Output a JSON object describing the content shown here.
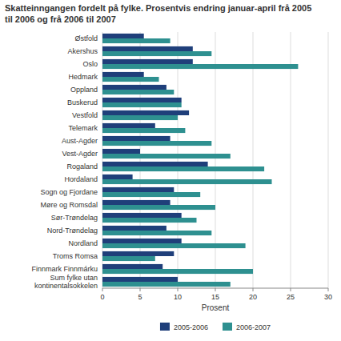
{
  "chart_data": {
    "type": "bar",
    "orientation": "horizontal",
    "title": "Skatteinngangen fordelt på fylke. Prosentvis endring januar-april frå 2005\ntil 2006 og frå 2006 til 2007",
    "categories": [
      "Østfold",
      "Akershus",
      "Oslo",
      "Hedmark",
      "Oppland",
      "Buskerud",
      "Vestfold",
      "Telemark",
      "Aust-Agder",
      "Vest-Agder",
      "Rogaland",
      "Hordaland",
      "Sogn og Fjordane",
      "Møre og Romsdal",
      "Sør-Trøndelag",
      "Nord-Trøndelag",
      "Nordland",
      "Troms Romsa",
      "Finnmark Finnmárku",
      "Sum fylke utan\nkontinentalsokkelen"
    ],
    "series": [
      {
        "name": "2005-2006",
        "color": "#1f3f7a",
        "values": [
          5.5,
          12.0,
          12.0,
          5.5,
          8.5,
          10.5,
          11.5,
          7.0,
          9.0,
          5.0,
          14.0,
          4.0,
          9.5,
          9.0,
          10.5,
          8.5,
          10.5,
          9.5,
          8.0,
          10.0
        ]
      },
      {
        "name": "2006-2007",
        "color": "#2e9090",
        "values": [
          9.0,
          14.5,
          26.0,
          7.5,
          9.5,
          10.5,
          10.0,
          11.0,
          14.5,
          17.0,
          21.5,
          22.5,
          13.0,
          15.0,
          12.5,
          14.5,
          19.0,
          7.0,
          20.0,
          17.0
        ]
      }
    ],
    "xlabel": "Prosent",
    "xlim": [
      0,
      30
    ],
    "xticks": [
      0,
      5,
      10,
      15,
      20,
      25,
      30
    ],
    "grid": true,
    "legend": "bottom"
  }
}
